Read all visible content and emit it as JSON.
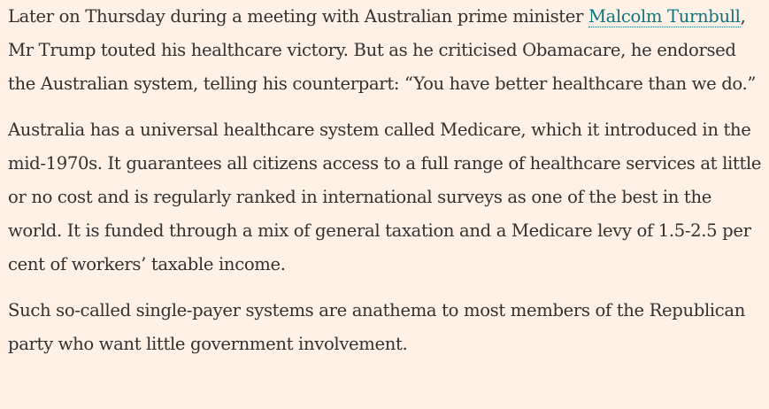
{
  "article": {
    "paragraphs": [
      {
        "before_link": "Later on Thursday during a meeting with Australian prime minister ",
        "link_text": "Malcolm Turnbull",
        "after_link": ", Mr Trump touted his healthcare victory. But as he criticised Obamacare, he endorsed the Australian system, telling his counterpart: “You have better healthcare than we do.”"
      },
      {
        "text": "Australia has a universal healthcare system called Medicare, which it introduced in the mid-1970s. It guarantees all citizens access to a full range of healthcare services at little or no cost and is regularly ranked in international surveys as one of the best in the world. It is funded through a mix of general taxation and a Medicare levy of 1.5-2.5 per cent of workers’ taxable income."
      },
      {
        "text": "Such so-called single-payer systems are anathema to most members of the Republican party who want little government involvement."
      }
    ]
  },
  "colors": {
    "background": "#fff1e5",
    "text": "#33302e",
    "link": "#0d7680"
  }
}
